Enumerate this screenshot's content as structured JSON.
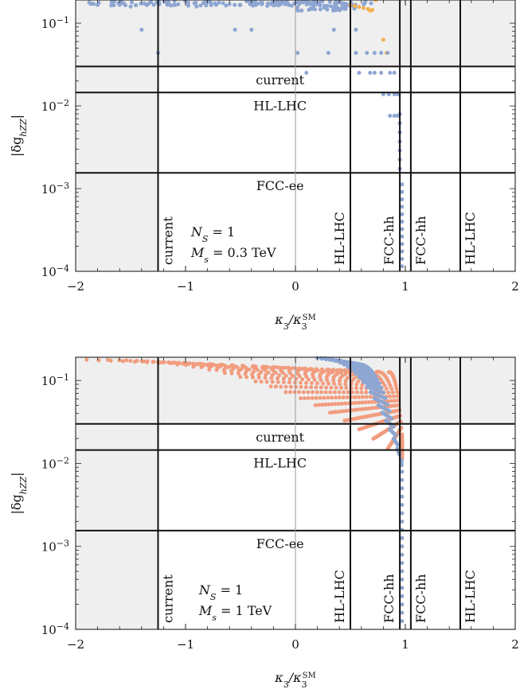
{
  "chart_data": [
    {
      "type": "scatter",
      "xlabel": "κ3/κ3^SM",
      "ylabel": "|δg_hZZ|",
      "xlim": [
        -2,
        2
      ],
      "ylim_log10": [
        -4,
        -0.72
      ],
      "x_ticks": [
        {
          "value": -2,
          "label": "−2"
        },
        {
          "value": -1,
          "label": "−1"
        },
        {
          "value": 0,
          "label": "0"
        },
        {
          "value": 1,
          "label": "1"
        },
        {
          "value": 2,
          "label": "2"
        }
      ],
      "y_ticks": [
        {
          "exp": -4,
          "base": "10",
          "sup": "−4"
        },
        {
          "exp": -3,
          "base": "10",
          "sup": "−3"
        },
        {
          "exp": -2,
          "base": "10",
          "sup": "−2"
        },
        {
          "exp": -1,
          "base": "10",
          "sup": "−1"
        }
      ],
      "hlines": [
        {
          "y": 0.03,
          "label": "current"
        },
        {
          "y": 0.0145,
          "label": "HL-LHC"
        },
        {
          "y": 0.00155,
          "label": "FCC-ee"
        }
      ],
      "vlines": [
        {
          "x": -1.25,
          "label": "current"
        },
        {
          "x": 0.5,
          "label": "HL-LHC"
        },
        {
          "x": 0.95,
          "label": "FCC-hh"
        },
        {
          "x": 1.05,
          "label": "FCC-hh"
        },
        {
          "x": 1.5,
          "label": "HL-LHC"
        }
      ],
      "shaded_region": {
        "x_min": -1.25,
        "y_max_below": 0.03
      },
      "annotation": {
        "line1": "N_S = 1",
        "line2": "M_s = 0.3 TeV"
      },
      "series": [
        {
          "color": "#8DA6D2",
          "x_max": 0.93,
          "density": "sparse"
        },
        {
          "color": "#F2B04E",
          "x_max": 0.75,
          "density": "edge"
        }
      ]
    },
    {
      "type": "scatter",
      "xlabel": "κ3/κ3^SM",
      "ylabel": "|δg_hZZ|",
      "xlim": [
        -2,
        2
      ],
      "ylim_log10": [
        -4,
        -0.72
      ],
      "x_ticks": [
        {
          "value": -2,
          "label": "−2"
        },
        {
          "value": -1,
          "label": "−1"
        },
        {
          "value": 0,
          "label": "0"
        },
        {
          "value": 1,
          "label": "1"
        },
        {
          "value": 2,
          "label": "2"
        }
      ],
      "y_ticks": [
        {
          "exp": -4,
          "base": "10",
          "sup": "−4"
        },
        {
          "exp": -3,
          "base": "10",
          "sup": "−3"
        },
        {
          "exp": -2,
          "base": "10",
          "sup": "−2"
        },
        {
          "exp": -1,
          "base": "10",
          "sup": "−1"
        }
      ],
      "hlines": [
        {
          "y": 0.03,
          "label": "current"
        },
        {
          "y": 0.0145,
          "label": "HL-LHC"
        },
        {
          "y": 0.00155,
          "label": "FCC-ee"
        }
      ],
      "vlines": [
        {
          "x": -1.25,
          "label": "current"
        },
        {
          "x": 0.5,
          "label": "HL-LHC"
        },
        {
          "x": 0.95,
          "label": "FCC-hh"
        },
        {
          "x": 1.05,
          "label": "FCC-hh"
        },
        {
          "x": 1.5,
          "label": "HL-LHC"
        }
      ],
      "shaded_region": {
        "x_min": -1.25,
        "y_max_below": 0.03
      },
      "annotation": {
        "line1": "N_S = 1",
        "line2": "M_s = 1 TeV"
      },
      "series": [
        {
          "color": "#F29C7E",
          "x_max": 0.97,
          "density": "dense"
        },
        {
          "color": "#8DA6D2",
          "x_max": 0.97,
          "density": "edge-band"
        }
      ]
    }
  ]
}
